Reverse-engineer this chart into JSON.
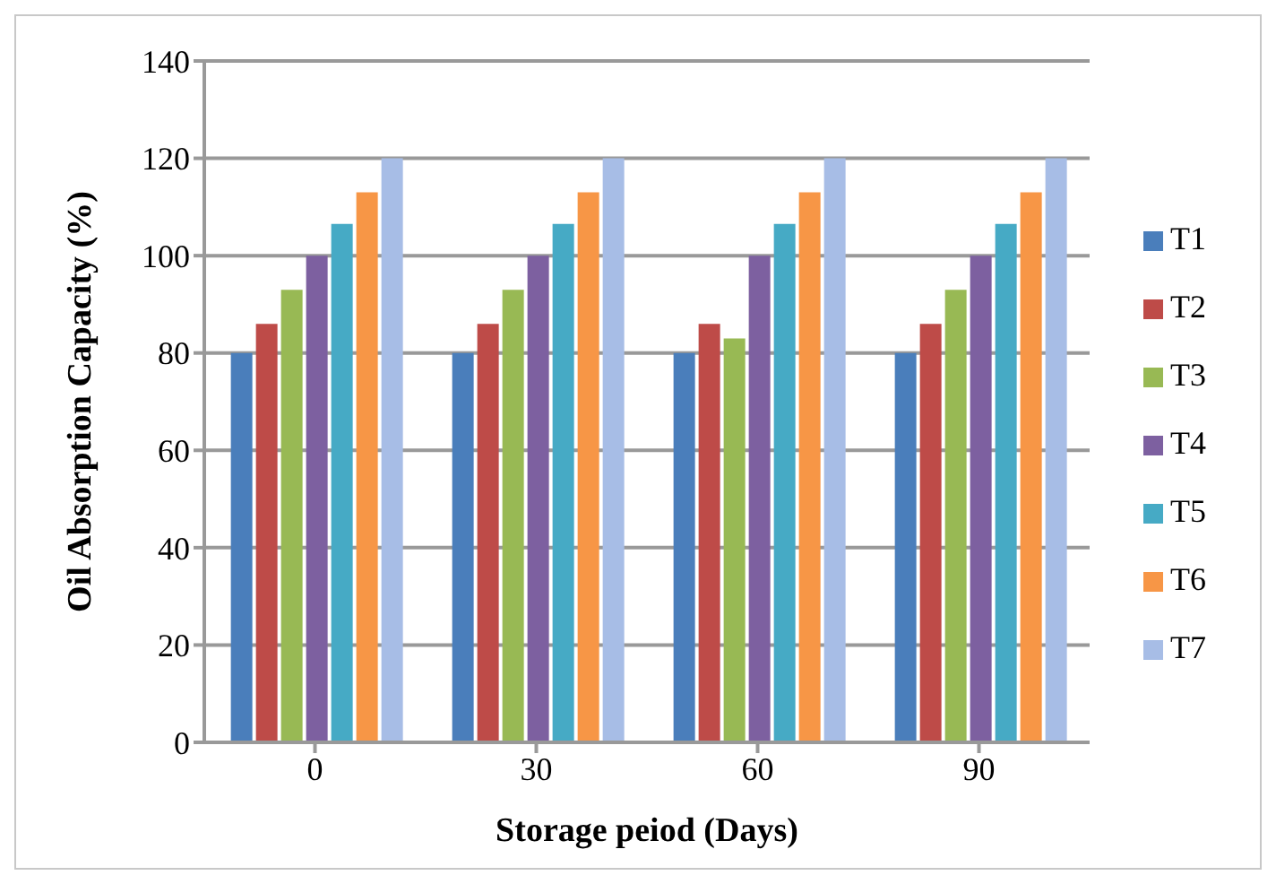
{
  "chart_data": {
    "type": "bar",
    "xlabel": "Storage peiod (Days)",
    "ylabel": "Oil Absorption Capacity (%)",
    "categories": [
      "0",
      "30",
      "60",
      "90"
    ],
    "series": [
      {
        "name": "T1",
        "color": "#4a7ebb",
        "values": [
          80,
          80,
          80,
          80
        ]
      },
      {
        "name": "T2",
        "color": "#be4b48",
        "values": [
          86,
          86,
          86,
          86
        ]
      },
      {
        "name": "T3",
        "color": "#98b954",
        "values": [
          93,
          93,
          83,
          93
        ]
      },
      {
        "name": "T4",
        "color": "#7d60a0",
        "values": [
          100,
          100,
          100,
          100
        ]
      },
      {
        "name": "T5",
        "color": "#46aac5",
        "values": [
          106.5,
          106.5,
          106.5,
          106.5
        ]
      },
      {
        "name": "T6",
        "color": "#f79646",
        "values": [
          113,
          113,
          113,
          113
        ]
      },
      {
        "name": "T7",
        "color": "#a7bde6",
        "values": [
          120,
          120,
          120,
          120
        ]
      }
    ],
    "ylim": [
      0,
      140
    ],
    "yticks": [
      0,
      20,
      40,
      60,
      80,
      100,
      120,
      140
    ],
    "grid": "y",
    "legend": "right"
  }
}
